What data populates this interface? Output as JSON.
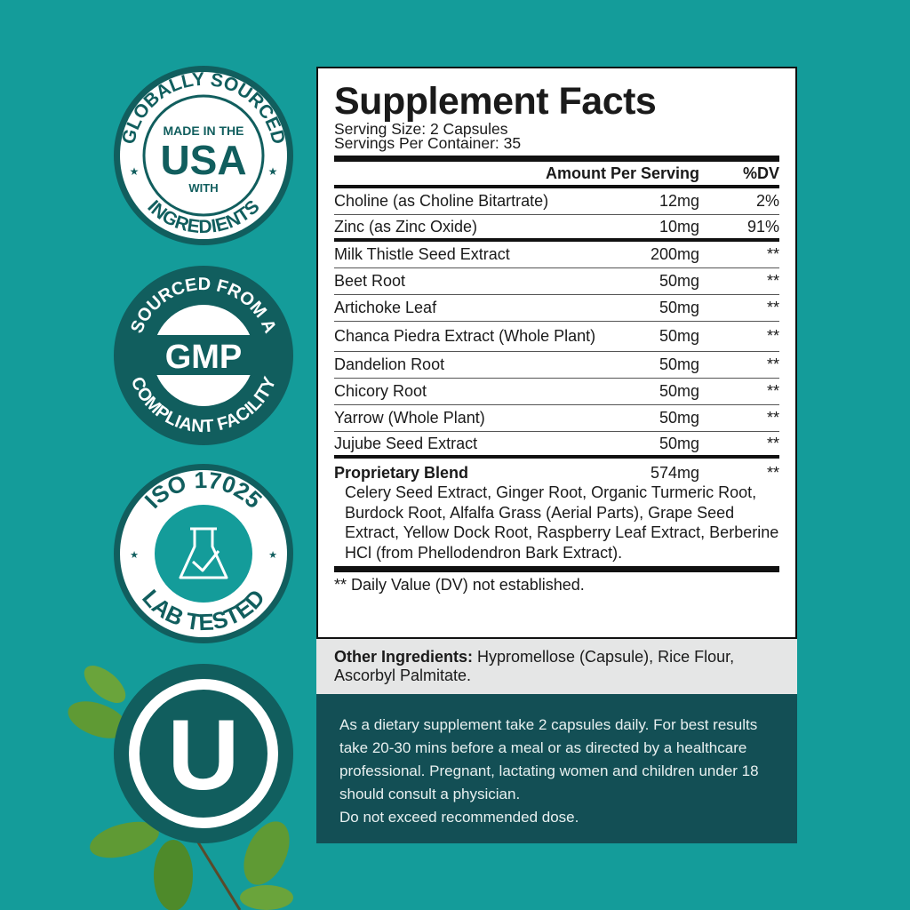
{
  "badges": {
    "usa": {
      "top_arc": "GLOBALLY SOURCED",
      "line1": "MADE IN THE",
      "big": "USA",
      "line2": "WITH",
      "bottom_arc": "INGREDIENTS"
    },
    "gmp": {
      "top_arc": "SOURCED FROM A",
      "big": "GMP",
      "bottom_arc": "COMPLIANT FACILITY"
    },
    "iso": {
      "top_arc": "ISO 17025",
      "bottom_arc": "LAB TESTED",
      "icon": "flask-check-icon"
    },
    "ou": {
      "letter": "U"
    }
  },
  "colors": {
    "background": "#149c9a",
    "dark_teal": "#115e5e",
    "directions_bg": "#134f55",
    "other_bg": "#e5e6e6"
  },
  "facts": {
    "title": "Supplement Facts",
    "serving_size": "Serving Size: 2 Capsules",
    "servings_per_container": "Servings Per Container: 35",
    "header": {
      "amount": "Amount Per Serving",
      "dv": "%DV"
    },
    "rows": [
      {
        "name": "Choline (as Choline Bitartrate)",
        "amount": "12mg",
        "dv": "2%"
      },
      {
        "name": "Zinc (as Zinc Oxide)",
        "amount": "10mg",
        "dv": "91%"
      },
      {
        "name": "Milk Thistle Seed Extract",
        "amount": "200mg",
        "dv": "**"
      },
      {
        "name": "Beet Root",
        "amount": "50mg",
        "dv": "**"
      },
      {
        "name": "Artichoke Leaf",
        "amount": "50mg",
        "dv": "**"
      },
      {
        "name": "Chanca Piedra Extract (Whole Plant)",
        "amount": "50mg",
        "dv": "**"
      },
      {
        "name": "Dandelion Root",
        "amount": "50mg",
        "dv": "**"
      },
      {
        "name": "Chicory Root",
        "amount": "50mg",
        "dv": "**"
      },
      {
        "name": "Yarrow (Whole Plant)",
        "amount": "50mg",
        "dv": "**"
      },
      {
        "name": "Jujube Seed Extract",
        "amount": "50mg",
        "dv": "**"
      }
    ],
    "blend": {
      "name": "Proprietary Blend",
      "amount": "574mg",
      "dv": "**",
      "ingredients": "Celery Seed Extract, Ginger Root, Organic Turmeric Root, Burdock Root, Alfalfa Grass (Aerial Parts), Grape Seed Extract, Yellow Dock Root, Raspberry Leaf Extract, Berberine HCl (from Phellodendron Bark Extract)."
    },
    "footnote": "** Daily Value (DV) not established."
  },
  "other": {
    "label": "Other Ingredients:",
    "text": " Hypromellose (Capsule), Rice Flour, Ascorbyl Palmitate."
  },
  "directions": {
    "lines": [
      "As a dietary supplement take 2 capsules daily. For best results take 20-30 mins before a meal or as directed by a healthcare professional. Pregnant, lactating women and children under 18 should consult a physician.",
      "Do not exceed recommended dose."
    ]
  }
}
